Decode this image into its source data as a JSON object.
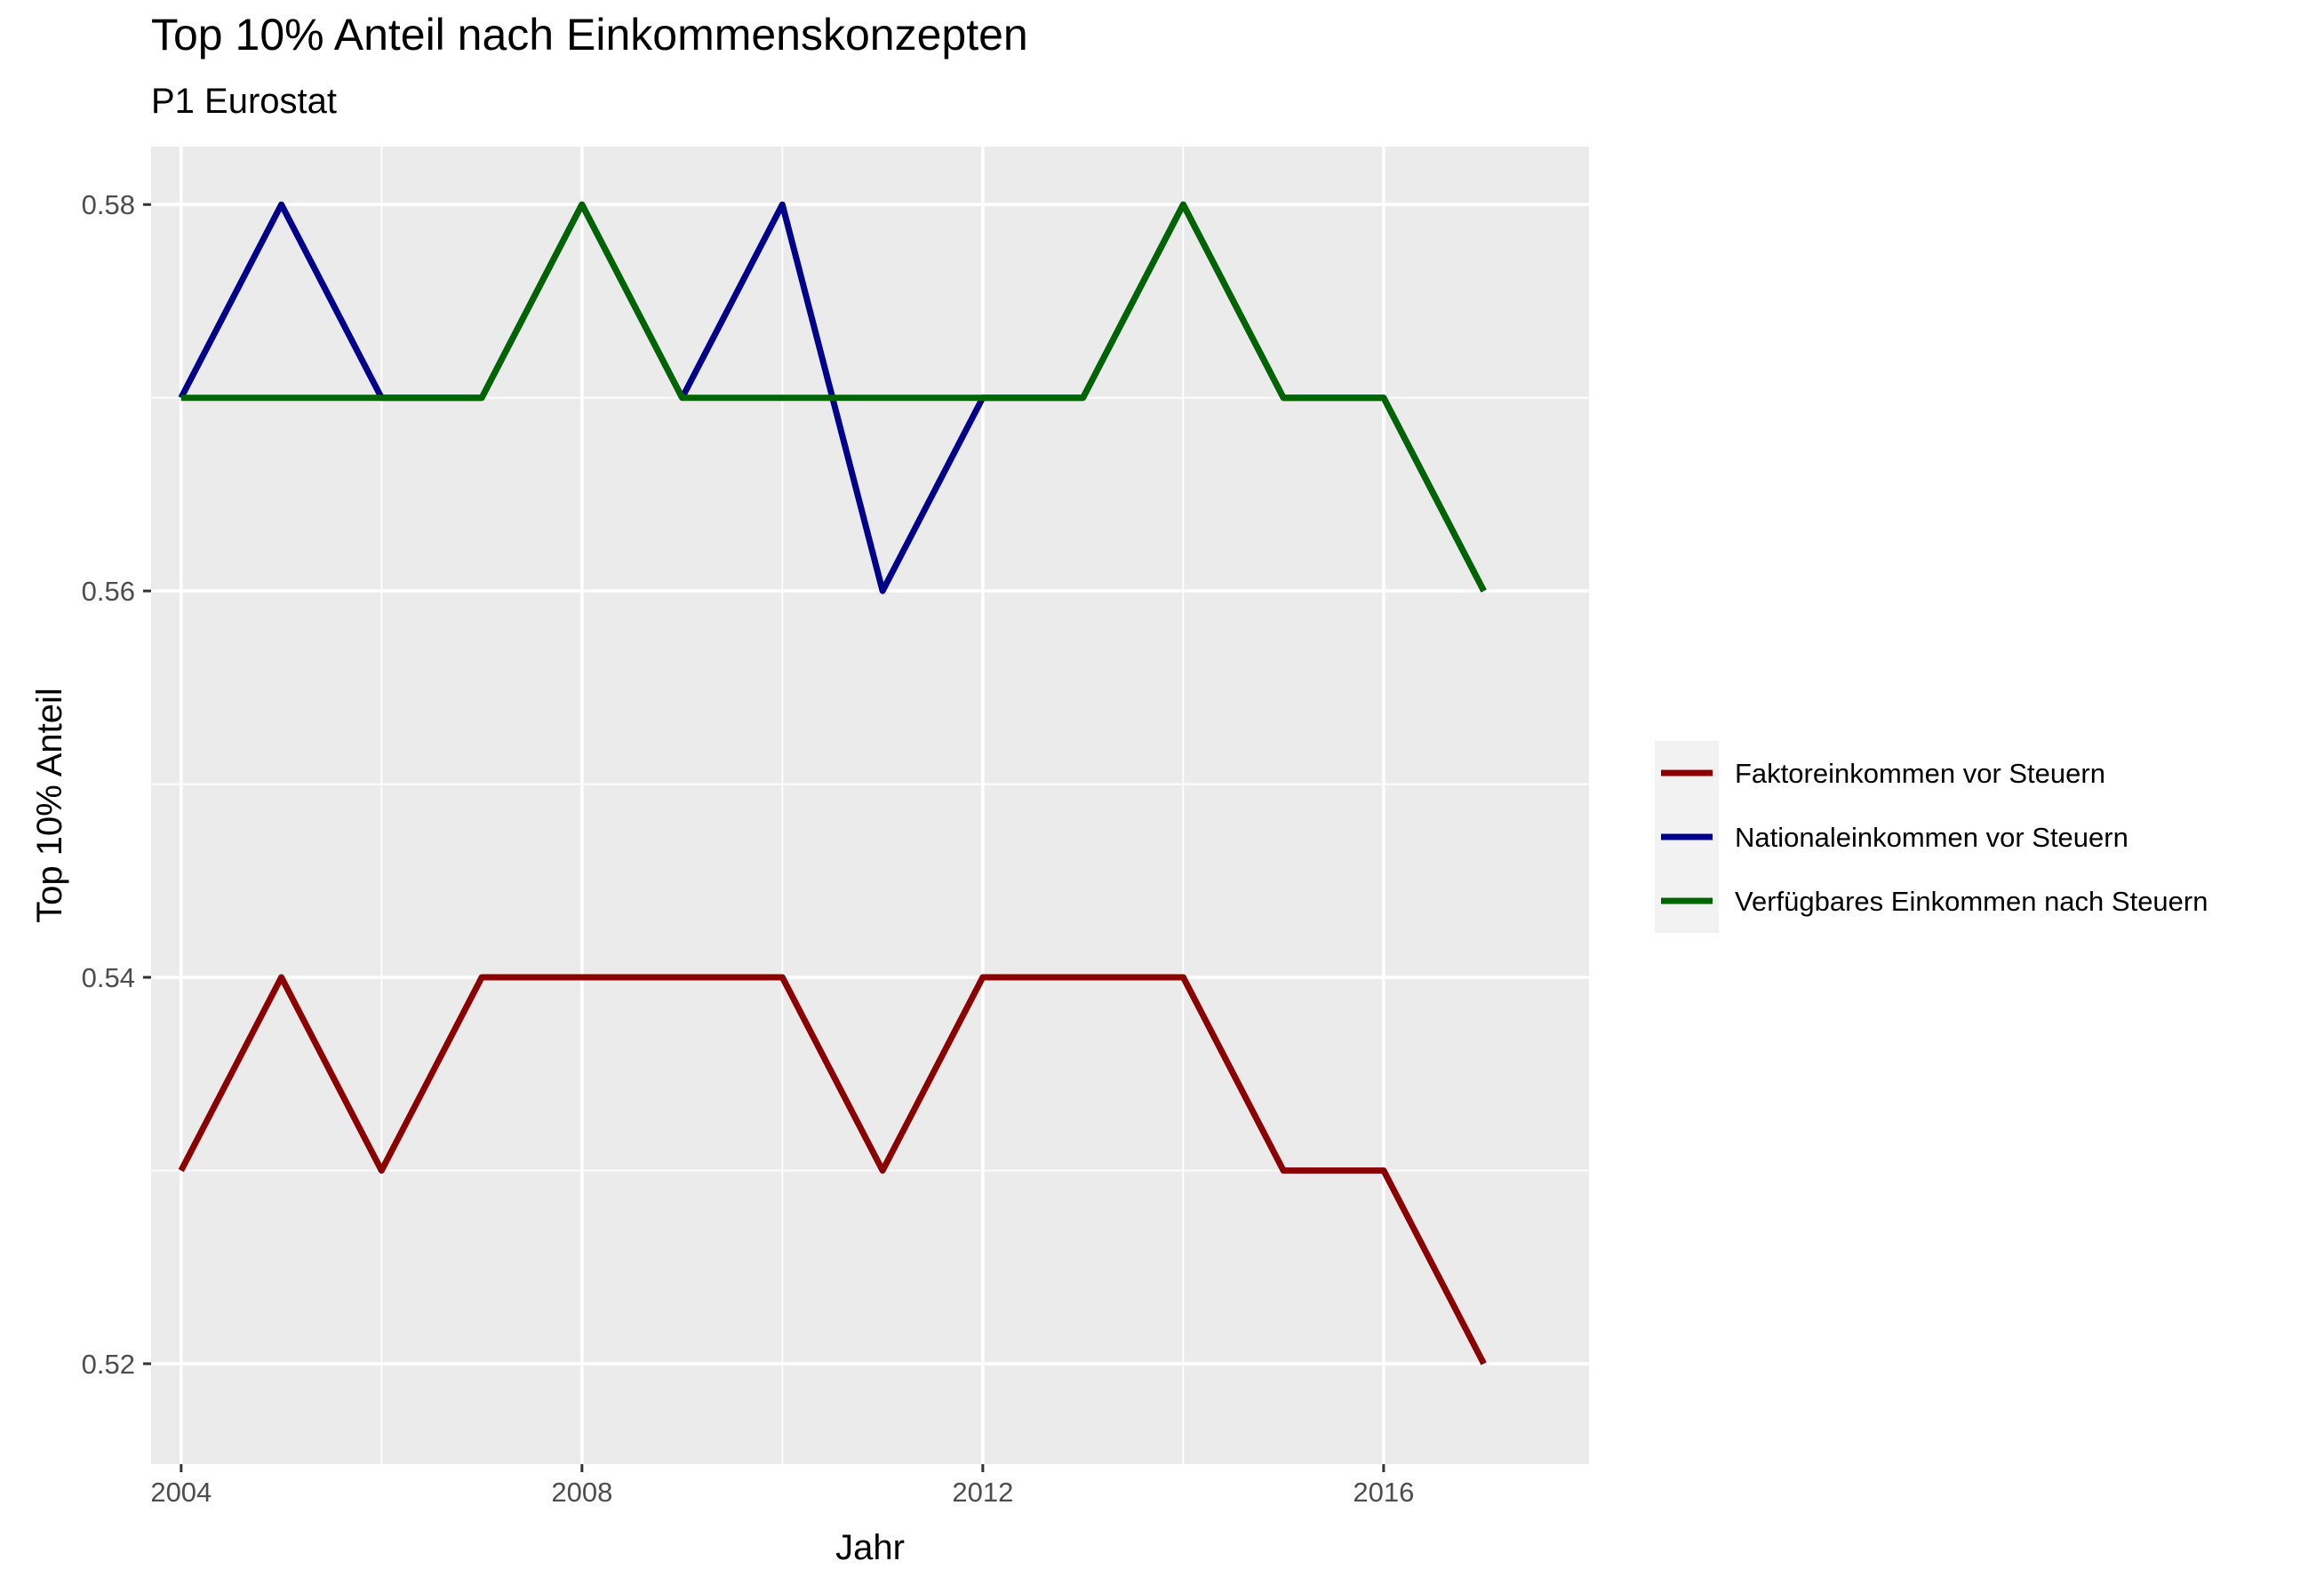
{
  "chart_data": {
    "type": "line",
    "title": "Top 10% Anteil nach Einkommenskonzepten",
    "subtitle": "P1 Eurostat",
    "xlabel": "Jahr",
    "ylabel": "Top 10% Anteil",
    "x": [
      2004,
      2005,
      2006,
      2007,
      2008,
      2009,
      2010,
      2011,
      2012,
      2013,
      2014,
      2015,
      2016,
      2017
    ],
    "xlim": [
      2003.7,
      2018.05
    ],
    "ylim": [
      0.5148,
      0.583
    ],
    "x_ticks": [
      2004,
      2008,
      2012,
      2016
    ],
    "x_minor": [
      2006,
      2010,
      2014
    ],
    "y_ticks": [
      0.52,
      0.54,
      0.56,
      0.58
    ],
    "y_minor": [
      0.53,
      0.55,
      0.57
    ],
    "x_tick_labels": [
      "2004",
      "2008",
      "2012",
      "2016"
    ],
    "y_tick_labels": [
      "0.52",
      "0.54",
      "0.56",
      "0.58"
    ],
    "grid": true,
    "legend_position": "right",
    "series": [
      {
        "name": "Faktoreinkommen vor Steuern",
        "color": "#8B0000",
        "values": [
          0.53,
          0.54,
          0.53,
          0.54,
          0.54,
          0.54,
          0.54,
          0.53,
          0.54,
          0.54,
          0.54,
          0.53,
          0.53,
          0.52
        ]
      },
      {
        "name": "Nationaleinkommen vor Steuern",
        "color": "#00008B",
        "values": [
          0.57,
          0.58,
          0.57,
          0.57,
          0.58,
          0.57,
          0.58,
          0.56,
          0.57,
          0.57,
          0.58,
          0.57,
          0.57,
          0.56
        ]
      },
      {
        "name": "Verfügbares Einkommen nach Steuern",
        "color": "#006400",
        "values": [
          0.57,
          0.57,
          0.57,
          0.57,
          0.58,
          0.57,
          0.57,
          0.57,
          0.57,
          0.57,
          0.58,
          0.57,
          0.57,
          0.56
        ]
      }
    ]
  }
}
